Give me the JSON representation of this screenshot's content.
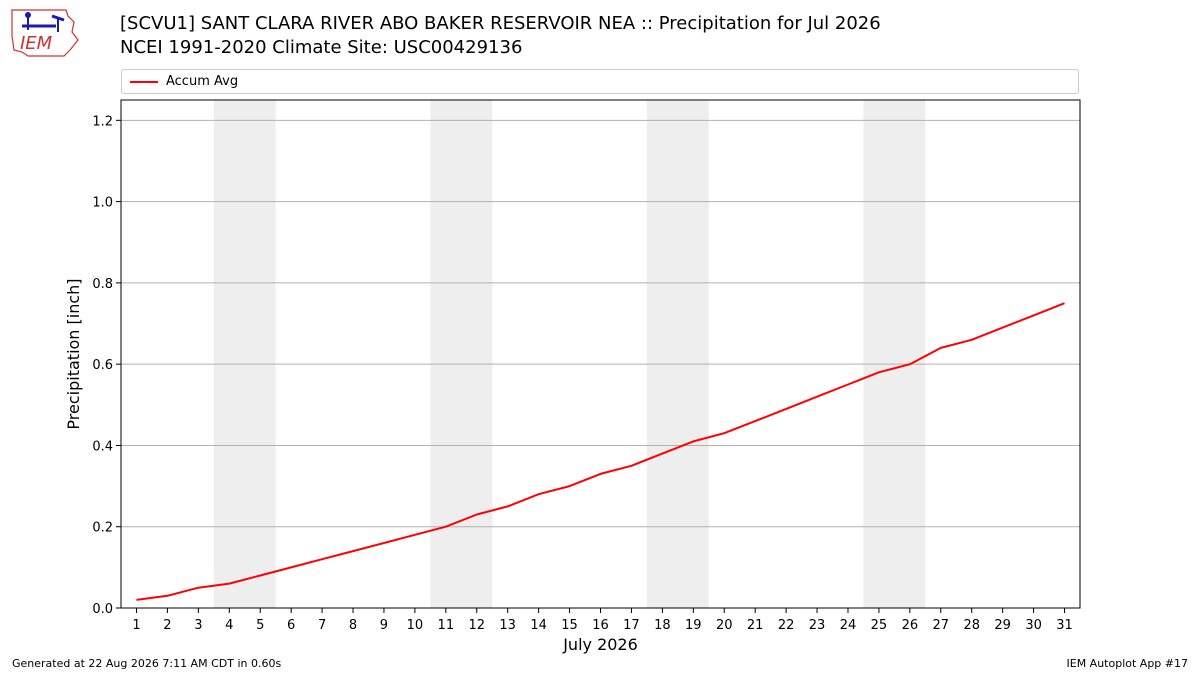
{
  "header": {
    "title_line1": "[SCVU1] SANT CLARA RIVER ABO BAKER RESERVOIR NEA :: Precipitation for Jul 2026",
    "title_line2": "NCEI 1991-2020 Climate Site: USC00429136",
    "logo_text": "IEM"
  },
  "legend": {
    "label": "Accum Avg"
  },
  "footer": {
    "left": "Generated at 22 Aug 2026 7:11 AM CDT in 0.60s",
    "right": "IEM Autoplot App #17"
  },
  "colors": {
    "series": "#ff0000",
    "weekend_shade": "#eeeeee",
    "grid": "#b0b0b0",
    "logo": "#1a1ab0",
    "logo_outline": "#cc3333"
  },
  "chart_data": {
    "type": "line",
    "title": "[SCVU1] SANT CLARA RIVER ABO BAKER RESERVOIR NEA :: Precipitation for Jul 2026",
    "subtitle": "NCEI 1991-2020 Climate Site: USC00429136",
    "xlabel": "July 2026",
    "ylabel": "Precipitation [inch]",
    "x": [
      1,
      2,
      3,
      4,
      5,
      6,
      7,
      8,
      9,
      10,
      11,
      12,
      13,
      14,
      15,
      16,
      17,
      18,
      19,
      20,
      21,
      22,
      23,
      24,
      25,
      26,
      27,
      28,
      29,
      30,
      31
    ],
    "xlim": [
      0.5,
      31.5
    ],
    "ylim": [
      0,
      1.25
    ],
    "yticks": [
      0.0,
      0.2,
      0.4,
      0.6,
      0.8,
      1.0,
      1.2
    ],
    "ytick_labels": [
      "0.0",
      "0.2",
      "0.4",
      "0.6",
      "0.8",
      "1.0",
      "1.2"
    ],
    "grid": "y",
    "legend_position": "top",
    "shaded_weekends": [
      [
        3.5,
        5.5
      ],
      [
        10.5,
        12.5
      ],
      [
        17.5,
        19.5
      ],
      [
        24.5,
        26.5
      ]
    ],
    "series": [
      {
        "name": "Accum Avg",
        "color": "#ff0000",
        "values": [
          0.02,
          0.03,
          0.05,
          0.06,
          0.08,
          0.1,
          0.12,
          0.14,
          0.16,
          0.18,
          0.2,
          0.23,
          0.25,
          0.28,
          0.3,
          0.33,
          0.35,
          0.38,
          0.41,
          0.43,
          0.46,
          0.49,
          0.52,
          0.55,
          0.58,
          0.6,
          0.64,
          0.66,
          0.69,
          0.72,
          0.75
        ]
      }
    ]
  }
}
